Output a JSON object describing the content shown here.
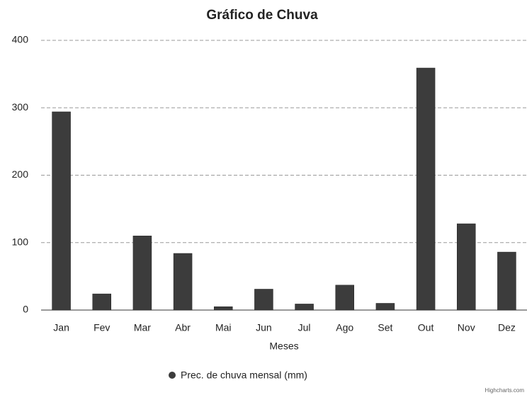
{
  "chart_data": {
    "type": "bar",
    "title": "Gráfico de Chuva",
    "x_label": "Meses",
    "categories": [
      "Jan",
      "Fev",
      "Mar",
      "Abr",
      "Mai",
      "Jun",
      "Jul",
      "Ago",
      "Set",
      "Out",
      "Nov",
      "Dez"
    ],
    "series": [
      {
        "name": "Prec. de chuva mensal (mm)",
        "color": "#3c3c3c",
        "values": [
          294,
          24,
          110,
          84,
          5,
          31,
          9,
          37,
          10,
          359,
          128,
          86
        ]
      }
    ],
    "ylim": [
      0,
      400
    ],
    "yticks": [
      0,
      100,
      200,
      300,
      400
    ],
    "grid": true,
    "credits": "Highcharts.com"
  }
}
